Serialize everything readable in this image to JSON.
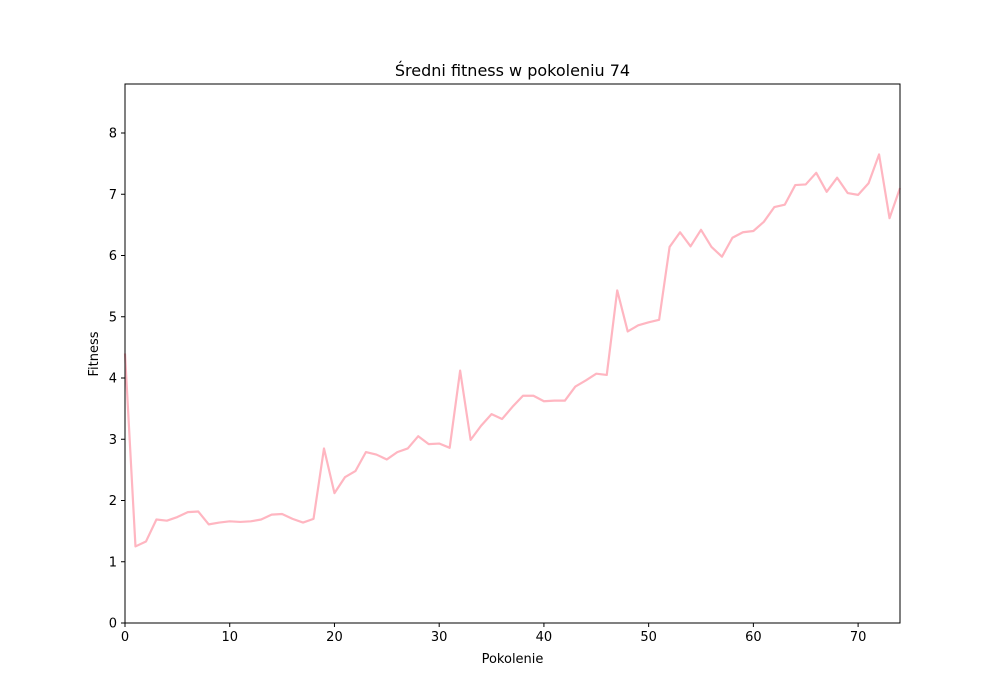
{
  "chart_data": {
    "type": "line",
    "title": "Średni fitness w pokoleniu 74",
    "xlabel": "Pokolenie",
    "ylabel": "Fitness",
    "xlim": [
      0,
      74
    ],
    "ylim": [
      0,
      8.8
    ],
    "xticks": [
      0,
      10,
      20,
      30,
      40,
      50,
      60,
      70
    ],
    "yticks": [
      0,
      1,
      2,
      3,
      4,
      5,
      6,
      7,
      8
    ],
    "grid": false,
    "series": [
      {
        "color": "#ffb6c1",
        "x": [
          0,
          1,
          2,
          3,
          4,
          5,
          6,
          7,
          8,
          9,
          10,
          11,
          12,
          13,
          14,
          15,
          16,
          17,
          18,
          19,
          20,
          21,
          22,
          23,
          24,
          25,
          26,
          27,
          28,
          29,
          30,
          31,
          32,
          33,
          34,
          35,
          36,
          37,
          38,
          39,
          40,
          41,
          42,
          43,
          44,
          45,
          46,
          47,
          48,
          49,
          50,
          51,
          52,
          53,
          54,
          55,
          56,
          57,
          58,
          59,
          60,
          61,
          62,
          63,
          64,
          65,
          66,
          67,
          68,
          69,
          70,
          71,
          72,
          73,
          74
        ],
        "y": [
          4.4,
          1.25,
          1.33,
          1.69,
          1.67,
          1.73,
          1.81,
          1.82,
          1.61,
          1.64,
          1.66,
          1.65,
          1.66,
          1.69,
          1.77,
          1.78,
          1.7,
          1.64,
          1.7,
          2.85,
          2.12,
          2.38,
          2.48,
          2.79,
          2.75,
          2.67,
          2.79,
          2.85,
          3.05,
          2.92,
          2.93,
          2.86,
          4.12,
          2.99,
          3.22,
          3.41,
          3.33,
          3.53,
          3.71,
          3.71,
          3.62,
          3.63,
          3.63,
          3.86,
          3.96,
          4.07,
          4.05,
          5.43,
          4.76,
          4.86,
          4.91,
          4.95,
          6.14,
          6.38,
          6.15,
          6.42,
          6.14,
          5.98,
          6.29,
          6.38,
          6.4,
          6.55,
          6.79,
          6.83,
          7.15,
          7.16,
          7.35,
          7.04,
          7.27,
          7.02,
          6.99,
          7.18,
          7.65,
          6.61,
          7.1
        ]
      }
    ]
  }
}
